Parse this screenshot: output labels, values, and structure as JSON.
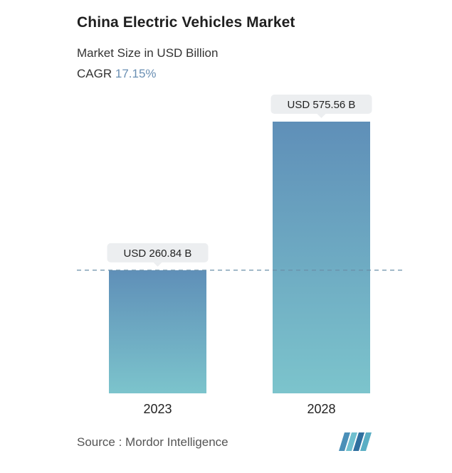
{
  "header": {
    "title": "China Electric Vehicles Market",
    "subtitle": "Market Size in USD Billion",
    "cagr_label": "CAGR",
    "cagr_value": "17.15%"
  },
  "chart_data": {
    "type": "bar",
    "title": "China Electric Vehicles Market",
    "ylabel": "Market Size in USD Billion",
    "categories": [
      "2023",
      "2028"
    ],
    "values": [
      260.84,
      575.56
    ],
    "data_labels": [
      "USD 260.84 B",
      "USD 575.56 B"
    ],
    "ylim": [
      0,
      575.56
    ],
    "grid": false,
    "reference_line_value": 260.84,
    "bar_gradient": [
      "#5f8fb8",
      "#7cc4cc"
    ]
  },
  "footer": {
    "source": "Source :  Mordor Intelligence",
    "logo_name": "mordor-intelligence-logo"
  }
}
